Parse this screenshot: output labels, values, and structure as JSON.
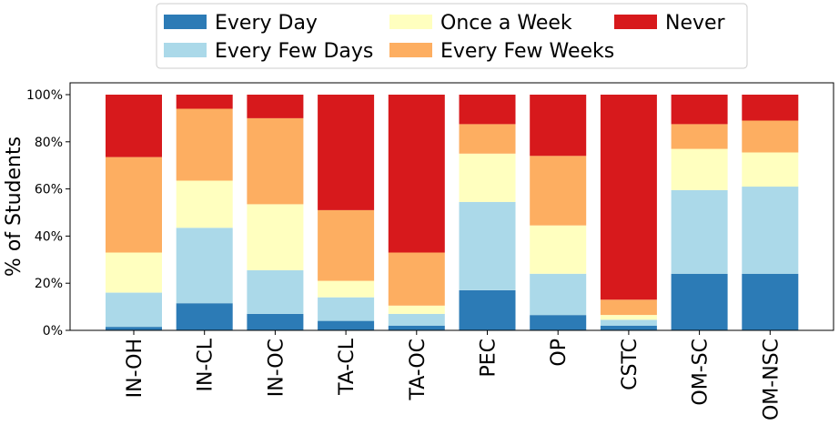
{
  "chart_data": {
    "type": "bar",
    "stacked": true,
    "title": "",
    "xlabel": "",
    "ylabel": "% of Students",
    "ylim": [
      0,
      100
    ],
    "yticks": [
      "0%",
      "20%",
      "40%",
      "60%",
      "80%",
      "100%"
    ],
    "ytick_values": [
      0,
      20,
      40,
      60,
      80,
      100
    ],
    "grid": false,
    "legend_position": "top-center",
    "categories": [
      "IN-OH",
      "IN-CL",
      "IN-OC",
      "TA-CL",
      "TA-OC",
      "PEC",
      "OP",
      "CSTC",
      "OM-SC",
      "OM-NSC"
    ],
    "series": [
      {
        "name": "Every Day",
        "color": "#2c7bb6",
        "values": [
          1.5,
          11.5,
          7.0,
          4.0,
          2.0,
          17.0,
          6.5,
          2.0,
          24.0,
          24.0
        ]
      },
      {
        "name": "Every Few Days",
        "color": "#abd9e9",
        "values": [
          14.5,
          32.0,
          18.5,
          10.0,
          5.0,
          37.5,
          17.5,
          2.5,
          35.5,
          37.0
        ]
      },
      {
        "name": "Once a Week",
        "color": "#ffffbf",
        "values": [
          17.0,
          20.0,
          28.0,
          7.0,
          3.5,
          20.5,
          20.5,
          2.0,
          17.5,
          14.5
        ]
      },
      {
        "name": "Every Few Weeks",
        "color": "#fdae61",
        "values": [
          40.5,
          30.5,
          36.5,
          30.0,
          22.5,
          12.5,
          29.5,
          6.5,
          10.5,
          13.5
        ]
      },
      {
        "name": "Never",
        "color": "#d7191c",
        "values": [
          26.5,
          6.0,
          10.0,
          49.0,
          67.0,
          12.5,
          26.0,
          87.0,
          12.5,
          11.0
        ]
      }
    ]
  }
}
